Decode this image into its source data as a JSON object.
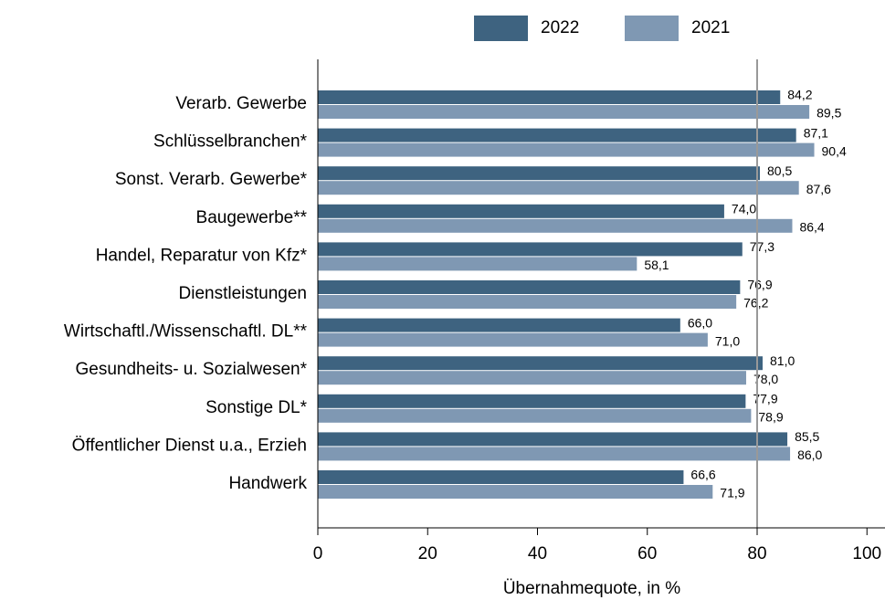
{
  "chart_data": {
    "type": "bar",
    "orientation": "horizontal",
    "x_label": "Übernahmequote, in %",
    "categories": [
      "Verarb. Gewerbe",
      "Schlüsselbranchen*",
      "Sonst. Verarb. Gewerbe*",
      "Baugewerbe**",
      "Handel, Reparatur von Kfz*",
      "Dienstleistungen",
      "Wirtschaftl./Wissenschaftl. DL**",
      "Gesundheits- u. Sozialwesen*",
      "Sonstige DL*",
      "Öffentlicher Dienst u.a., Erzieh",
      "Handwerk"
    ],
    "series": [
      {
        "name": "2022",
        "color": "#3e6380",
        "values": [
          84.2,
          87.1,
          80.5,
          74.0,
          77.3,
          76.9,
          66.0,
          81.0,
          77.9,
          85.5,
          66.6
        ],
        "value_labels": [
          "84,2",
          "87,1",
          "80,5",
          "74,0",
          "77,3",
          "76,9",
          "66,0",
          "81,0",
          "77,9",
          "85,5",
          "66,6"
        ]
      },
      {
        "name": "2021",
        "color": "#7f98b3",
        "values": [
          89.5,
          90.4,
          87.6,
          86.4,
          58.1,
          76.2,
          71.0,
          78.0,
          78.9,
          86.0,
          71.9
        ],
        "value_labels": [
          "89,5",
          "90,4",
          "87,6",
          "86,4",
          "58,1",
          "76,2",
          "71,0",
          "78,0",
          "78,9",
          "86,0",
          "71,9"
        ]
      }
    ],
    "xlim": [
      0,
      100
    ],
    "xticks": [
      0,
      20,
      40,
      60,
      80,
      100
    ],
    "reference_line": 80,
    "reference_line_color": "#999999",
    "legend": "top"
  }
}
